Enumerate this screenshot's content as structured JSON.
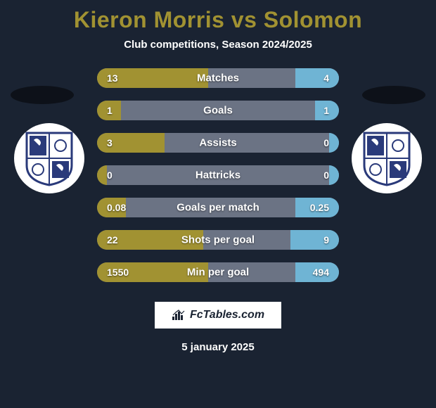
{
  "title": "Kieron Morris vs Solomon",
  "subtitle": "Club competitions, Season 2024/2025",
  "date": "5 january 2025",
  "footer_brand": "FcTables.com",
  "colors": {
    "bg": "#1a2332",
    "accent": "#a19232",
    "left_bar": "#a19232",
    "right_bar": "#6fb4d4",
    "mid_bar": "#6b7384",
    "text": "#ffffff"
  },
  "crest": {
    "bg": "#ffffff",
    "shield_blue": "#2a3a7a",
    "shield_white": "#ffffff"
  },
  "stats": [
    {
      "label": "Matches",
      "left_val": "13",
      "right_val": "4",
      "left_pct": 46,
      "right_pct": 18
    },
    {
      "label": "Goals",
      "left_val": "1",
      "right_val": "1",
      "left_pct": 10,
      "right_pct": 10
    },
    {
      "label": "Assists",
      "left_val": "3",
      "right_val": "0",
      "left_pct": 28,
      "right_pct": 4
    },
    {
      "label": "Hattricks",
      "left_val": "0",
      "right_val": "0",
      "left_pct": 4,
      "right_pct": 4
    },
    {
      "label": "Goals per match",
      "left_val": "0.08",
      "right_val": "0.25",
      "left_pct": 12,
      "right_pct": 18
    },
    {
      "label": "Shots per goal",
      "left_val": "22",
      "right_val": "9",
      "left_pct": 44,
      "right_pct": 20
    },
    {
      "label": "Min per goal",
      "left_val": "1550",
      "right_val": "494",
      "left_pct": 46,
      "right_pct": 18
    }
  ]
}
